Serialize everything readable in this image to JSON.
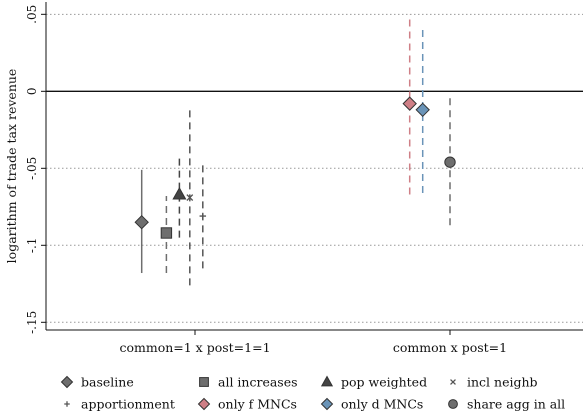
{
  "chart_data": {
    "type": "scatter",
    "title": "",
    "xlabel": "",
    "ylabel": "logarithm of trade tax revenue",
    "ylim": [
      -0.155,
      0.058
    ],
    "yticks": [
      {
        "value": 0.05,
        "label": ".05"
      },
      {
        "value": 0,
        "label": "0"
      },
      {
        "value": -0.05,
        "label": "-.05"
      },
      {
        "value": -0.1,
        "label": "-.1"
      },
      {
        "value": -0.15,
        "label": "-.15"
      }
    ],
    "grid": "horizontal dotted",
    "zero_line": true,
    "legend_position": "bottom",
    "categories": [
      "common=1 x post=1=1",
      "common x post=1"
    ],
    "series": [
      {
        "name": "baseline",
        "marker": "diamond",
        "color": "#6e6e6e",
        "dashed": false,
        "category": 0,
        "offset": -0.41,
        "estimate": -0.085,
        "ci": [
          -0.118,
          -0.051
        ]
      },
      {
        "name": "all increases",
        "marker": "square",
        "color": "#6e6e6e",
        "dashed": true,
        "category": 0,
        "offset": -0.22,
        "estimate": -0.092,
        "ci": [
          -0.118,
          -0.068
        ]
      },
      {
        "name": "pop weighted",
        "marker": "triangle",
        "color": "#444444",
        "dashed": true,
        "category": 0,
        "offset": -0.12,
        "estimate": -0.067,
        "ci": [
          -0.095,
          -0.041
        ]
      },
      {
        "name": "incl neighb",
        "marker": "x",
        "color": "#555555",
        "dashed": true,
        "category": 0,
        "offset": -0.04,
        "estimate": -0.069,
        "ci": [
          -0.126,
          -0.011
        ]
      },
      {
        "name": "apportionment",
        "marker": "plus",
        "color": "#555555",
        "dashed": true,
        "category": 0,
        "offset": 0.06,
        "estimate": -0.081,
        "ci": [
          -0.115,
          -0.047
        ]
      },
      {
        "name": "only f MNCs",
        "marker": "diamond",
        "color": "#cf7f86",
        "dashed": true,
        "category": 1,
        "offset": -0.31,
        "estimate": -0.008,
        "ci": [
          -0.067,
          0.05
        ]
      },
      {
        "name": "only d MNCs",
        "marker": "diamond",
        "color": "#6a94b8",
        "dashed": true,
        "category": 1,
        "offset": -0.21,
        "estimate": -0.012,
        "ci": [
          -0.066,
          0.041
        ]
      },
      {
        "name": "share agg in all",
        "marker": "circle",
        "color": "#6e6e6e",
        "dashed": true,
        "category": 1,
        "offset": 0.0,
        "estimate": -0.046,
        "ci": [
          -0.087,
          -0.004
        ]
      }
    ],
    "legend_rows": [
      [
        "baseline",
        "all increases",
        "pop weighted",
        "incl neighb"
      ],
      [
        "apportionment",
        "only f MNCs",
        "only d MNCs",
        "share agg in all"
      ]
    ]
  }
}
